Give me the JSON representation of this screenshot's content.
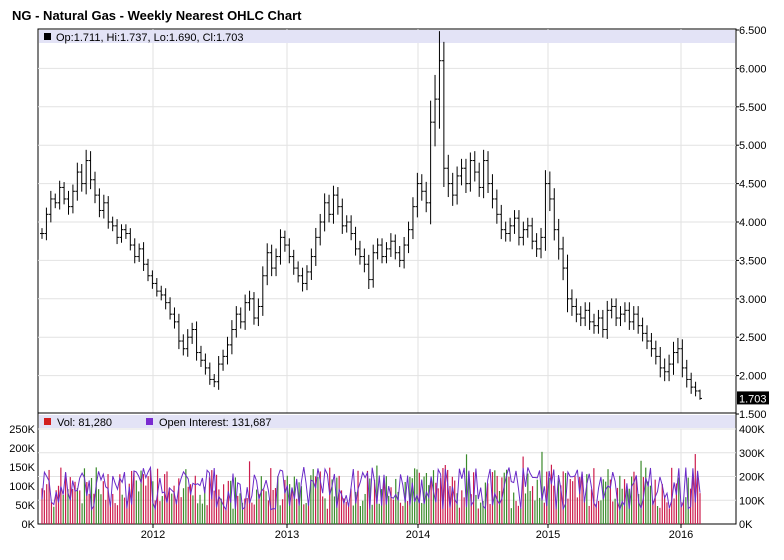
{
  "chart_data": [
    {
      "type": "ohlc",
      "title": "NG - Natural Gas - Weekly Nearest OHLC Chart",
      "legend": "Op:1.711, Hi:1.737, Lo:1.690, Cl:1.703",
      "last_price_label": "1.703",
      "last_price": 1.703,
      "ylim": [
        1.5,
        6.5
      ],
      "y_ticks": [
        "1.500",
        "2.000",
        "2.500",
        "3.000",
        "3.500",
        "4.000",
        "4.500",
        "5.000",
        "5.500",
        "6.000",
        "6.500"
      ],
      "x_ticks": [
        "2012",
        "2013",
        "2014",
        "2015",
        "2016"
      ],
      "grid": true,
      "closes": [
        3.85,
        4.1,
        4.3,
        4.25,
        4.45,
        4.3,
        4.2,
        4.4,
        4.65,
        4.5,
        4.8,
        4.55,
        4.35,
        4.15,
        4.25,
        4.0,
        3.95,
        3.8,
        3.9,
        3.85,
        3.7,
        3.55,
        3.65,
        3.45,
        3.3,
        3.2,
        3.1,
        3.05,
        2.95,
        2.8,
        2.7,
        2.45,
        2.35,
        2.5,
        2.6,
        2.3,
        2.2,
        2.1,
        1.95,
        1.92,
        2.15,
        2.25,
        2.4,
        2.6,
        2.8,
        2.7,
        2.95,
        3.0,
        2.75,
        2.9,
        3.3,
        3.6,
        3.4,
        3.55,
        3.8,
        3.7,
        3.55,
        3.4,
        3.3,
        3.2,
        3.35,
        3.55,
        3.8,
        4.0,
        4.25,
        4.1,
        4.35,
        4.2,
        3.95,
        4.0,
        3.85,
        3.65,
        3.55,
        3.45,
        3.25,
        3.6,
        3.7,
        3.55,
        3.65,
        3.75,
        3.6,
        3.5,
        3.7,
        3.9,
        4.2,
        4.5,
        4.4,
        4.25,
        5.3,
        5.6,
        6.1,
        4.7,
        4.5,
        4.35,
        4.6,
        4.7,
        4.5,
        4.8,
        4.65,
        4.45,
        4.8,
        4.5,
        4.3,
        4.1,
        3.9,
        3.85,
        3.95,
        4.05,
        3.8,
        3.9,
        3.95,
        3.75,
        3.65,
        3.8,
        4.5,
        4.3,
        3.9,
        3.65,
        3.4,
        3.0,
        2.9,
        2.8,
        2.75,
        2.85,
        2.7,
        2.65,
        2.75,
        2.6,
        2.85,
        2.9,
        2.75,
        2.8,
        2.85,
        2.7,
        2.8,
        2.65,
        2.55,
        2.45,
        2.35,
        2.25,
        2.1,
        2.05,
        2.15,
        2.3,
        2.35,
        2.1,
        1.95,
        1.85,
        1.8,
        1.703
      ],
      "ranges": [
        0.2,
        0.25,
        0.3,
        0.2,
        0.25,
        0.2,
        0.3,
        0.25,
        0.35,
        0.3,
        0.4,
        0.35,
        0.3,
        0.25,
        0.3,
        0.25,
        0.2,
        0.25,
        0.2,
        0.2,
        0.2,
        0.25,
        0.2,
        0.25,
        0.2,
        0.2,
        0.2,
        0.2,
        0.25,
        0.2,
        0.25,
        0.3,
        0.25,
        0.3,
        0.25,
        0.3,
        0.25,
        0.25,
        0.2,
        0.2,
        0.3,
        0.25,
        0.3,
        0.35,
        0.3,
        0.25,
        0.3,
        0.3,
        0.25,
        0.3,
        0.35,
        0.35,
        0.3,
        0.3,
        0.3,
        0.25,
        0.25,
        0.25,
        0.25,
        0.3,
        0.25,
        0.3,
        0.35,
        0.3,
        0.35,
        0.3,
        0.35,
        0.3,
        0.3,
        0.25,
        0.25,
        0.25,
        0.3,
        0.3,
        0.35,
        0.3,
        0.25,
        0.25,
        0.25,
        0.3,
        0.25,
        0.25,
        0.3,
        0.3,
        0.35,
        0.4,
        0.35,
        0.35,
        0.8,
        0.9,
        1.1,
        0.7,
        0.5,
        0.4,
        0.35,
        0.35,
        0.35,
        0.3,
        0.35,
        0.35,
        0.4,
        0.35,
        0.35,
        0.35,
        0.35,
        0.3,
        0.3,
        0.3,
        0.3,
        0.3,
        0.3,
        0.3,
        0.3,
        0.35,
        0.5,
        0.45,
        0.4,
        0.4,
        0.45,
        0.5,
        0.35,
        0.3,
        0.3,
        0.3,
        0.3,
        0.3,
        0.3,
        0.3,
        0.35,
        0.3,
        0.3,
        0.3,
        0.3,
        0.3,
        0.3,
        0.3,
        0.3,
        0.3,
        0.3,
        0.3,
        0.35,
        0.35,
        0.35,
        0.4,
        0.4,
        0.35,
        0.3,
        0.25,
        0.2,
        0.05
      ]
    },
    {
      "type": "bar",
      "legend_volume": "Vol: 81,280",
      "legend_oi": "Open Interest: 131,687",
      "left_ticks": [
        "0K",
        "50K",
        "100K",
        "150K",
        "200K",
        "250K"
      ],
      "right_ticks": [
        "0K",
        "100K",
        "200K",
        "300K",
        "400K"
      ],
      "volume_max": 250000,
      "oi_max": 400000,
      "volume_colors": {
        "up": "#3a8a2a",
        "down": "#cc1c4c"
      },
      "oi_color": "#6a2bc8",
      "volume_count": 280,
      "volume_last": 81280,
      "oi_last": 131687
    }
  ]
}
